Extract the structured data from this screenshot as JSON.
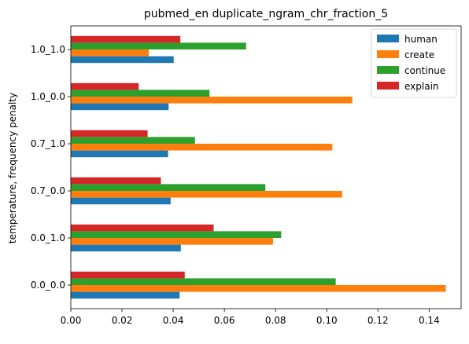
{
  "chart_data": {
    "type": "bar",
    "orientation": "horizontal",
    "title": "pubmed_en duplicate_ngram_chr_fraction_5",
    "xlabel": "",
    "ylabel": "temperature, frequency penalty",
    "categories": [
      "0.0_0.0",
      "0.0_1.0",
      "0.7_0.0",
      "0.7_1.0",
      "1.0_0.0",
      "1.0_1.0"
    ],
    "series": [
      {
        "name": "human",
        "color": "#1f77b4",
        "values": [
          0.0425,
          0.043,
          0.039,
          0.038,
          0.0382,
          0.0402
        ]
      },
      {
        "name": "create",
        "color": "#ff7f0e",
        "values": [
          0.1465,
          0.079,
          0.106,
          0.1022,
          0.11,
          0.0305
        ]
      },
      {
        "name": "continue",
        "color": "#2ca02c",
        "values": [
          0.1035,
          0.0822,
          0.076,
          0.0485,
          0.0542,
          0.0685
        ]
      },
      {
        "name": "explain",
        "color": "#d62728",
        "values": [
          0.0445,
          0.0558,
          0.0352,
          0.03,
          0.0265,
          0.0428
        ]
      }
    ],
    "xlim": [
      0,
      0.1525
    ],
    "xticks": [
      "0.00",
      "0.02",
      "0.04",
      "0.06",
      "0.08",
      "0.10",
      "0.12",
      "0.14"
    ],
    "grid": false,
    "legend_position": "upper right"
  }
}
